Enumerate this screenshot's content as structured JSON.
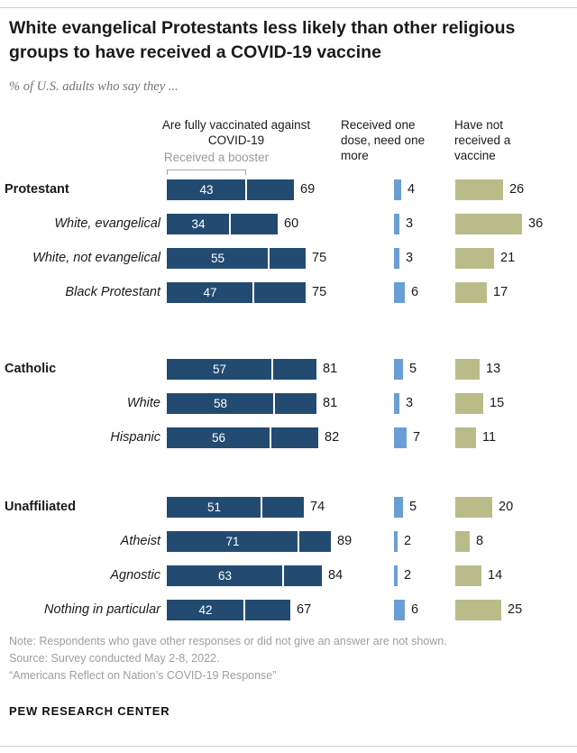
{
  "chart_data": {
    "type": "bar",
    "title": "White evangelical Protestants less likely than other religious groups to have received a COVID-19 vaccine",
    "subtitle": "% of U.S. adults who say they ...",
    "headers": {
      "fully": "Are fully vaccinated against COVID-19",
      "booster": "Received a booster",
      "one_dose": "Received one dose, need one more",
      "not_received": "Have not received a vaccine"
    },
    "colors": {
      "fully": "#234b72",
      "one_dose": "#6a9ed6",
      "not_received": "#b9bc88",
      "booster_divider": "#ffffff",
      "bracket": "#a6a6a6"
    },
    "xlim": [
      0,
      100
    ],
    "legend_position": "top",
    "grid": false,
    "groups": [
      {
        "rows": [
          {
            "label": "Protestant",
            "bold": true,
            "booster": 43,
            "fully": 69,
            "one_dose": 4,
            "not_received": 26
          },
          {
            "label": "White, evangelical",
            "bold": false,
            "booster": 34,
            "fully": 60,
            "one_dose": 3,
            "not_received": 36
          },
          {
            "label": "White, not evangelical",
            "bold": false,
            "booster": 55,
            "fully": 75,
            "one_dose": 3,
            "not_received": 21
          },
          {
            "label": "Black Protestant",
            "bold": false,
            "booster": 47,
            "fully": 75,
            "one_dose": 6,
            "not_received": 17
          }
        ]
      },
      {
        "rows": [
          {
            "label": "Catholic",
            "bold": true,
            "booster": 57,
            "fully": 81,
            "one_dose": 5,
            "not_received": 13
          },
          {
            "label": "White",
            "bold": false,
            "booster": 58,
            "fully": 81,
            "one_dose": 3,
            "not_received": 15
          },
          {
            "label": "Hispanic",
            "bold": false,
            "booster": 56,
            "fully": 82,
            "one_dose": 7,
            "not_received": 11
          }
        ]
      },
      {
        "rows": [
          {
            "label": "Unaffiliated",
            "bold": true,
            "booster": 51,
            "fully": 74,
            "one_dose": 5,
            "not_received": 20
          },
          {
            "label": "Atheist",
            "bold": false,
            "booster": 71,
            "fully": 89,
            "one_dose": 2,
            "not_received": 8
          },
          {
            "label": "Agnostic",
            "bold": false,
            "booster": 63,
            "fully": 84,
            "one_dose": 2,
            "not_received": 14
          },
          {
            "label": "Nothing in particular",
            "bold": false,
            "booster": 42,
            "fully": 67,
            "one_dose": 6,
            "not_received": 25
          }
        ]
      }
    ]
  },
  "notes": [
    "Note: Respondents who gave other responses or did not give an answer are not shown.",
    "Source: Survey conducted May 2-8, 2022.",
    "“Americans Reflect on Nation’s COVID-19 Response”"
  ],
  "footer": "PEW RESEARCH CENTER"
}
